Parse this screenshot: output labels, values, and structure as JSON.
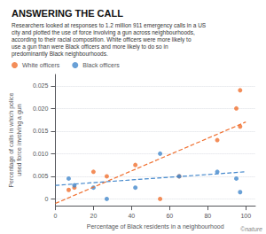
{
  "chart_data": {
    "type": "scatter",
    "title": "ANSWERING THE CALL",
    "subtitle": "Researchers looked at responses to 1.2 million 911 emergency calls in a US\ncity and plotted the use of force involving a gun across neighbourhoods,\naccording to their racial composition. White officers were more likely to\nuse a gun than were Black officers and more likely to do so in\npredominantly Black neighbourhoods.",
    "x_label": "Percentage of Black residents in a neighbourhood",
    "y_label": "Percentage of calls in which police\nused force involving a gun",
    "annotations": [
      "©nature"
    ],
    "series": [
      {
        "name": "White officers",
        "type": "scatter",
        "marker": "circle",
        "color": "#f07030",
        "x": [
          7,
          10,
          20,
          27,
          42,
          55,
          65,
          85,
          95,
          97,
          97
        ],
        "values": [
          0.002,
          0.0025,
          0.006,
          0.005,
          0.0075,
          0.0,
          0.005,
          0.013,
          0.02,
          0.016,
          0.024
        ]
      },
      {
        "name": "Black officers",
        "type": "scatter",
        "marker": "circle",
        "color": "#4488cc",
        "x": [
          7,
          10,
          20,
          27,
          42,
          55,
          65,
          85,
          95,
          97
        ],
        "values": [
          0.0045,
          0.003,
          0.0025,
          0.0,
          0.0025,
          0.01,
          0.005,
          0.006,
          0.0045,
          0.0015
        ]
      },
      {
        "type": "line",
        "line_style": "dashed",
        "color": "#f07030",
        "x": [
          0,
          100
        ],
        "values": [
          -0.001,
          0.017
        ]
      },
      {
        "type": "line",
        "line_style": "dashed",
        "color": "#4488cc",
        "x": [
          0,
          100
        ],
        "values": [
          0.003,
          0.006
        ]
      }
    ],
    "xlim": [
      0,
      105
    ],
    "xticks": [
      0,
      20,
      40,
      60,
      80,
      100
    ],
    "ylim": [
      -0.0015,
      0.0275
    ],
    "yticks": [
      0,
      0.005,
      {
        "value": 0.01,
        "label": "0.010"
      },
      0.015,
      {
        "value": 0.02,
        "label": "0.020"
      },
      0.025
    ],
    "grid": "y",
    "legend": "top-left"
  }
}
